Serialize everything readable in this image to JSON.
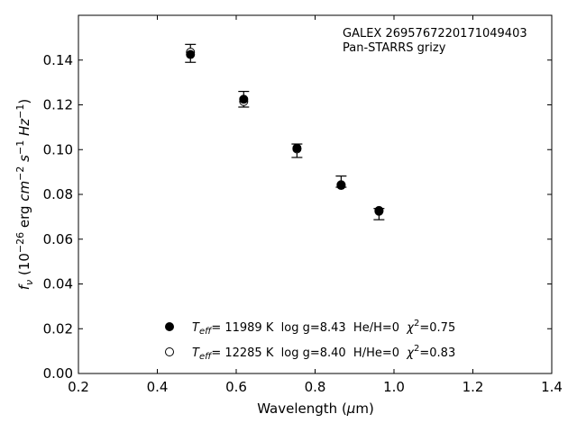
{
  "chart_data": {
    "type": "scatter",
    "title": "",
    "xlabel": "Wavelength (μm)",
    "ylabel": "f_ν (10^-26 erg cm^-2 s^-1 Hz^-1)",
    "xlim": [
      0.2,
      1.4
    ],
    "ylim": [
      0.0,
      0.16
    ],
    "xticks": [
      "0.2",
      "0.4",
      "0.6",
      "0.8",
      "1.0",
      "1.2",
      "1.4"
    ],
    "yticks": [
      "0.00",
      "0.02",
      "0.04",
      "0.06",
      "0.08",
      "0.10",
      "0.12",
      "0.14"
    ],
    "grid": false,
    "annotations": [
      "GALEX 2695767220171049403",
      "Pan-STARRS grizy"
    ],
    "observed": {
      "x": [
        0.484,
        0.619,
        0.754,
        0.866,
        0.962
      ],
      "y": [
        0.143,
        0.1225,
        0.0995,
        0.0857,
        0.0712
      ],
      "yerr": [
        0.004,
        0.0035,
        0.003,
        0.0025,
        0.0025
      ]
    },
    "series": [
      {
        "marker": "filled",
        "label": {
          "teff_sym": "T",
          "teff_sub": "eff",
          "rest": "= 11989 K  log g=8.43  He/H=0  ",
          "chi": "χ",
          "chi_sup": "2",
          "chi_val": "=0.75"
        },
        "x": [
          0.484,
          0.619,
          0.754,
          0.866,
          0.962
        ],
        "y": [
          0.1425,
          0.1225,
          0.1007,
          0.084,
          0.0725
        ]
      },
      {
        "marker": "open",
        "label": {
          "teff_sym": "T",
          "teff_sub": "eff",
          "rest": "= 12285 K  log g=8.40  H/He=0  ",
          "chi": "χ",
          "chi_sup": "2",
          "chi_val": "=0.83"
        },
        "x": [
          0.484,
          0.619,
          0.754,
          0.866,
          0.962
        ],
        "y": [
          0.1435,
          0.1215,
          0.1003,
          0.0843,
          0.0728
        ]
      }
    ],
    "legend_position": "lower-center"
  }
}
